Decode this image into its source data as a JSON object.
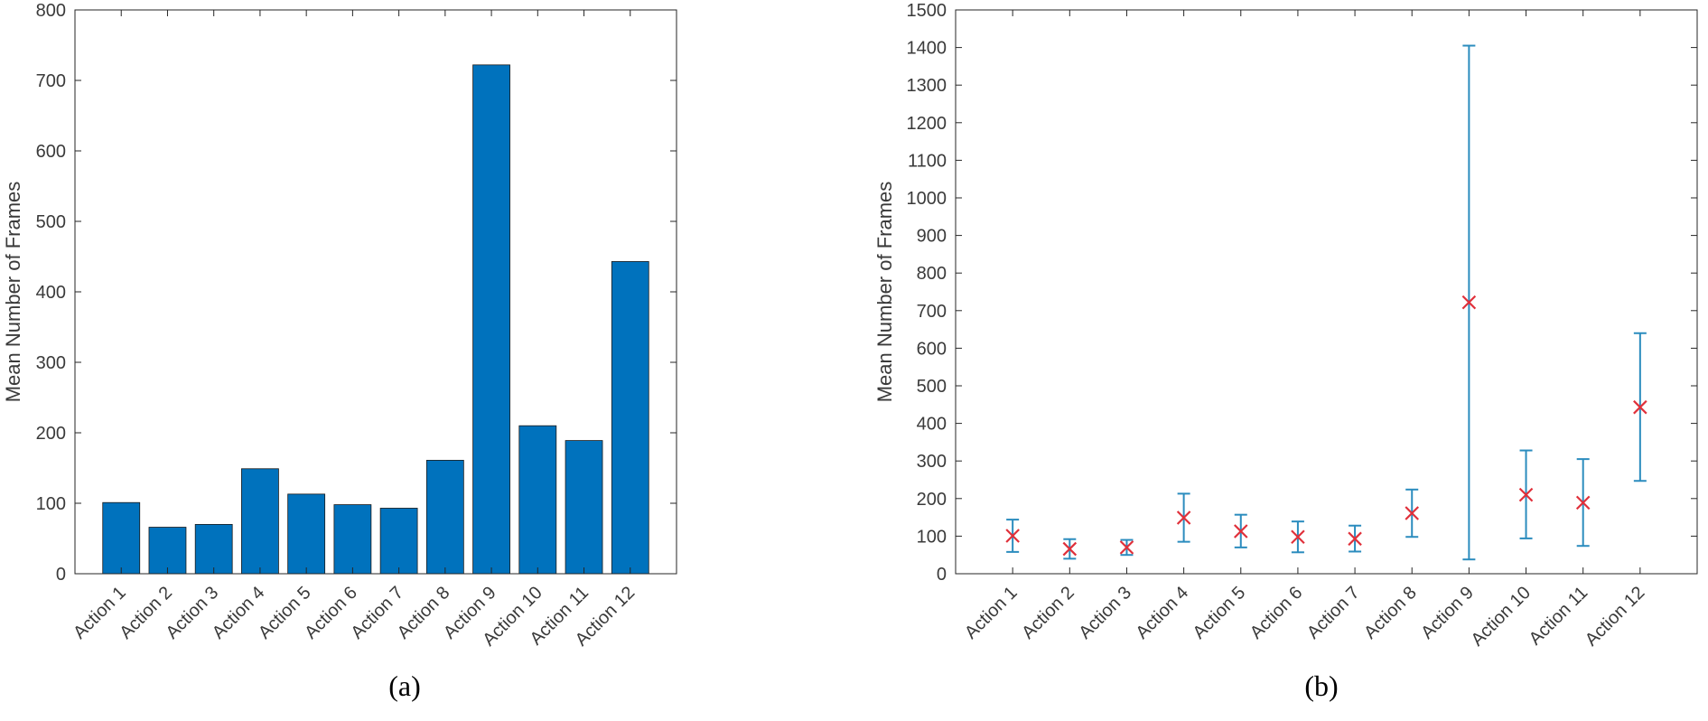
{
  "chart_data": [
    {
      "id": "a",
      "type": "bar",
      "caption": "(a)",
      "categories": [
        "Action 1",
        "Action 2",
        "Action 3",
        "Action 4",
        "Action 5",
        "Action 6",
        "Action 7",
        "Action 8",
        "Action 9",
        "Action 10",
        "Action 11",
        "Action 12"
      ],
      "values": [
        101,
        66,
        70,
        149,
        113,
        98,
        93,
        161,
        722,
        210,
        189,
        443
      ],
      "ylabel": "Mean Number of Frames",
      "xlabel": "",
      "ylim": [
        0,
        800
      ],
      "yticks": [
        0,
        100,
        200,
        300,
        400,
        500,
        600,
        700,
        800
      ],
      "bar_color": "#0072BD",
      "grid": false
    },
    {
      "id": "b",
      "type": "scatter",
      "subtype": "errorbar",
      "caption": "(b)",
      "categories": [
        "Action 1",
        "Action 2",
        "Action 3",
        "Action 4",
        "Action 5",
        "Action 6",
        "Action 7",
        "Action 8",
        "Action 9",
        "Action 10",
        "Action 11",
        "Action 12"
      ],
      "values": [
        101,
        66,
        70,
        149,
        113,
        98,
        93,
        161,
        722,
        210,
        189,
        443
      ],
      "lower": [
        58,
        40,
        50,
        85,
        70,
        57,
        59,
        98,
        38,
        94,
        74,
        247
      ],
      "upper": [
        144,
        92,
        90,
        213,
        157,
        139,
        128,
        224,
        1405,
        328,
        305,
        640
      ],
      "ylabel": "Mean Number of Frames",
      "xlabel": "",
      "ylim": [
        0,
        1500
      ],
      "yticks": [
        0,
        100,
        200,
        300,
        400,
        500,
        600,
        700,
        800,
        900,
        1000,
        1100,
        1200,
        1300,
        1400,
        1500
      ],
      "errorbar_color": "#2B8CBE",
      "marker_color": "#E0303A",
      "marker": "x",
      "grid": false
    }
  ]
}
